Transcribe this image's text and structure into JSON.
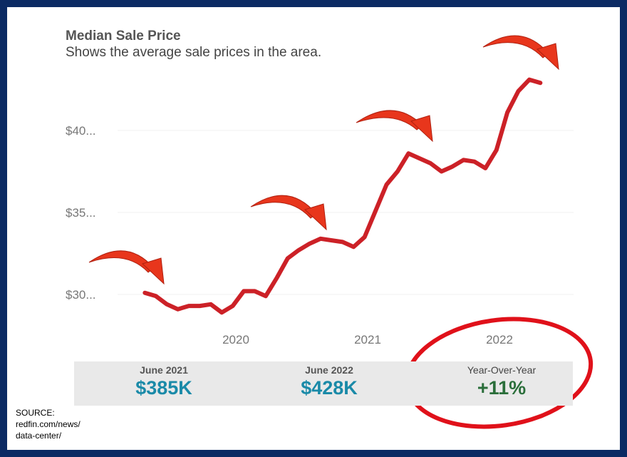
{
  "chart_data": {
    "type": "line",
    "title": "Median Sale Price",
    "subtitle": "Shows the average sale prices in the area.",
    "xlabel": "",
    "ylabel": "",
    "y_unit": "$K",
    "ylim": [
      28,
      44
    ],
    "yticks": [
      {
        "value": 30,
        "label": "$30..."
      },
      {
        "value": 35,
        "label": "$35..."
      },
      {
        "value": 40,
        "label": "$40..."
      }
    ],
    "xticks": [
      {
        "value": 2020,
        "label": "2020"
      },
      {
        "value": 2021,
        "label": "2021"
      },
      {
        "value": 2022,
        "label": "2022"
      }
    ],
    "xlim": [
      2019.0,
      2022.75
    ],
    "grid": true,
    "series": [
      {
        "name": "Median Sale Price",
        "color": "#cc2127",
        "x_start": 2019.31,
        "x_step_months": 1,
        "values": [
          30.1,
          29.9,
          29.4,
          29.1,
          29.3,
          29.3,
          29.4,
          28.9,
          29.3,
          30.2,
          30.2,
          29.9,
          31.0,
          32.2,
          32.7,
          33.1,
          33.4,
          33.3,
          33.2,
          32.9,
          33.5,
          35.1,
          36.7,
          37.5,
          38.6,
          38.3,
          38.0,
          37.5,
          37.8,
          38.2,
          38.1,
          37.7,
          38.8,
          41.1,
          42.4,
          43.1,
          42.9
        ]
      }
    ]
  },
  "stats": [
    {
      "label": "June 2021",
      "value": "$385K",
      "color": "#1a8aa8"
    },
    {
      "label": "June 2022",
      "value": "$428K",
      "color": "#1a8aa8"
    },
    {
      "label": "Year-Over-Year",
      "value": "+11%",
      "color": "#2a6e3a"
    }
  ],
  "source": {
    "line1": "SOURCE:",
    "line2": "redfin.com/news/",
    "line3": "data-center/"
  },
  "annotation_color": "#e8361c"
}
